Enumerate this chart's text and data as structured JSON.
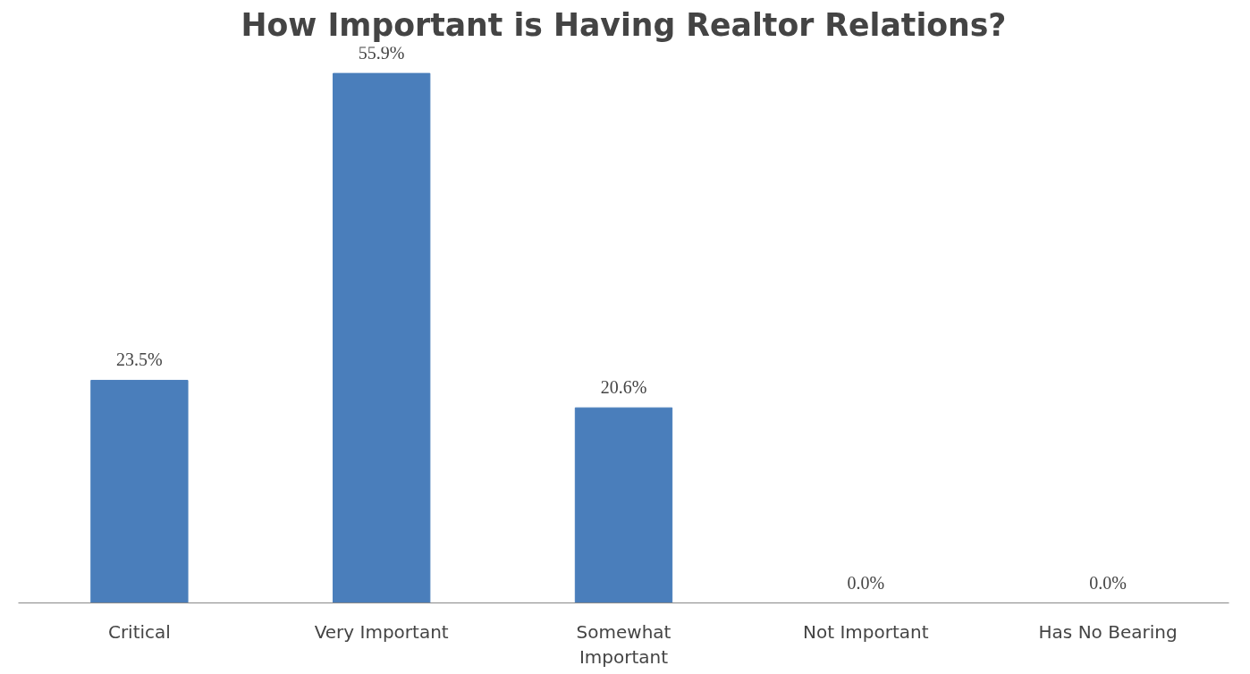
{
  "chart_data": {
    "type": "bar",
    "title": "How Important is Having Realtor Relations?",
    "categories": [
      "Critical",
      "Very Important",
      "Somewhat Important",
      "Not Important",
      "Has No Bearing"
    ],
    "values": [
      23.5,
      55.9,
      20.6,
      0.0,
      0.0
    ],
    "value_labels": [
      "23.5%",
      "55.9%",
      "20.6%",
      "0.0%",
      "0.0%"
    ],
    "color": "#4a7ebb",
    "grid": false
  }
}
